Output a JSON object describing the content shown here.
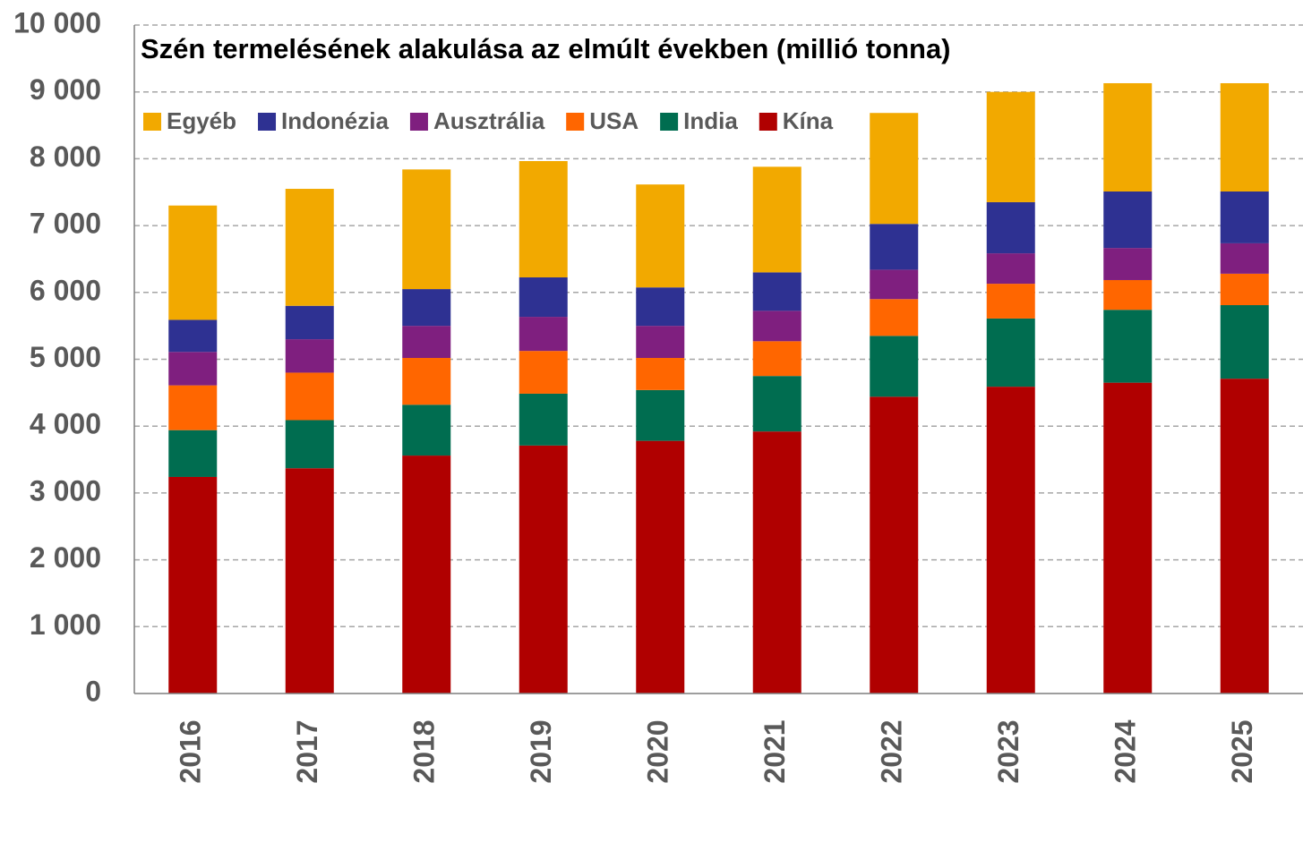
{
  "chart_data": {
    "type": "bar",
    "stacked": true,
    "title": "Szén termelésének alakulása az elmúlt években (millió tonna)",
    "categories": [
      "2016",
      "2017",
      "2018",
      "2019",
      "2020",
      "2021",
      "2022",
      "2023",
      "2024",
      "2025"
    ],
    "series": [
      {
        "name": "Kína",
        "color": "#b00000",
        "values": [
          3240,
          3370,
          3560,
          3710,
          3780,
          3920,
          4440,
          4590,
          4650,
          4710
        ]
      },
      {
        "name": "India",
        "color": "#006d50",
        "values": [
          700,
          720,
          760,
          775,
          760,
          830,
          910,
          1020,
          1090,
          1100
        ]
      },
      {
        "name": "USA",
        "color": "#ff6600",
        "values": [
          670,
          710,
          700,
          640,
          480,
          520,
          550,
          520,
          445,
          470
        ]
      },
      {
        "name": "Ausztrália",
        "color": "#7f1f7f",
        "values": [
          500,
          500,
          480,
          510,
          480,
          455,
          440,
          455,
          480,
          455
        ]
      },
      {
        "name": "Indonézia",
        "color": "#2e3192",
        "values": [
          480,
          500,
          550,
          590,
          575,
          575,
          685,
          765,
          845,
          775
        ]
      },
      {
        "name": "Egyéb",
        "color": "#f2a900",
        "values": [
          1710,
          1750,
          1790,
          1740,
          1540,
          1580,
          1660,
          1650,
          1620,
          1620
        ]
      }
    ],
    "ylim": [
      0,
      10000
    ],
    "yticks": [
      0,
      {
        "value": 1000,
        "label": "1 000"
      },
      {
        "value": 2000,
        "label": "2 000"
      },
      {
        "value": 3000,
        "label": "3 000"
      },
      {
        "value": 4000,
        "label": "4 000"
      },
      {
        "value": 5000,
        "label": "5 000"
      },
      {
        "value": 6000,
        "label": "6 000"
      },
      {
        "value": 7000,
        "label": "7 000"
      },
      {
        "value": 8000,
        "label": "8 000"
      },
      {
        "value": 9000,
        "label": "9 000"
      },
      {
        "value": 10000,
        "label": "10 000"
      }
    ],
    "grid": true,
    "legend": "top"
  }
}
